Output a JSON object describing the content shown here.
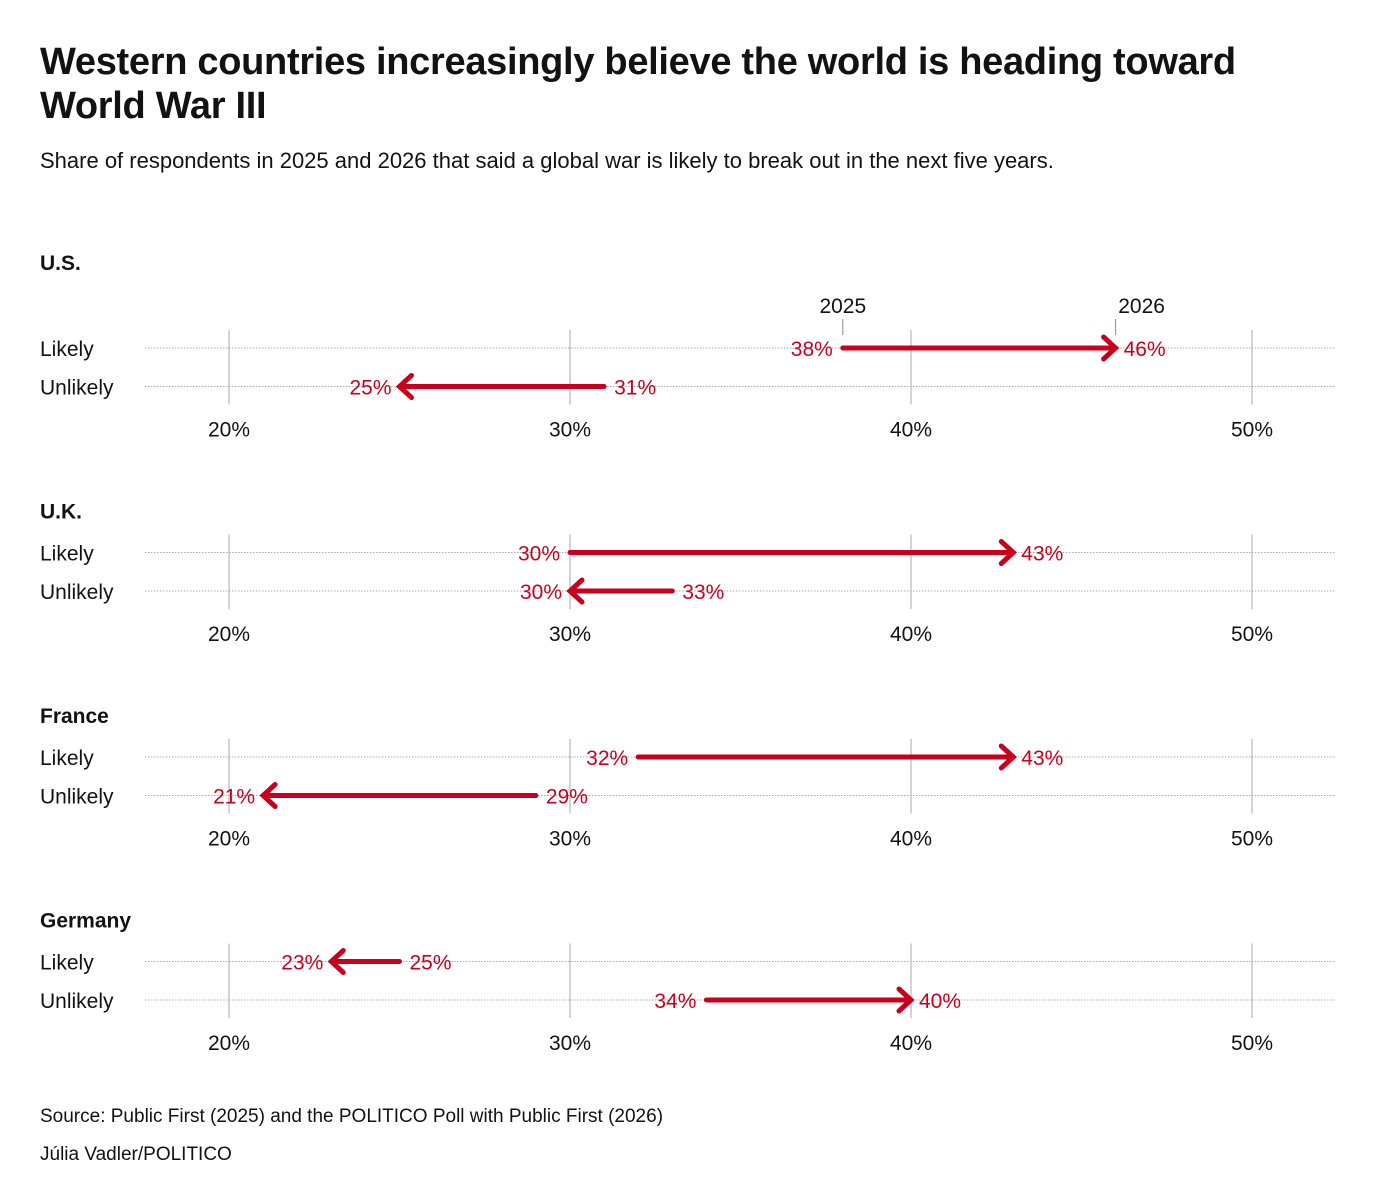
{
  "title": "Western countries increasingly believe the world is heading toward World War III",
  "subtitle": "Share of respondents in 2025 and 2026 that said a global war is likely to break out in the next five years.",
  "source": "Source: Public First (2025) and the POLITICO Poll with Public First (2026)",
  "credit": "Júlia Vadler/POLITICO",
  "colors": {
    "arrow": "#c8001e",
    "text": "#121212",
    "grid": "#999999"
  },
  "chart_data": {
    "type": "arrow-dot",
    "legend": {
      "start": "2025",
      "end": "2026"
    },
    "x_ticks": [
      20,
      30,
      40,
      50
    ],
    "x_tick_labels": [
      "20%",
      "30%",
      "40%",
      "50%"
    ],
    "xlim": [
      17.5,
      52.5
    ],
    "rows": [
      "Likely",
      "Unlikely"
    ],
    "panels": [
      {
        "name": "U.S.",
        "series": [
          {
            "name": "Likely",
            "start": 38,
            "end": 46,
            "start_label": "38%",
            "end_label": "46%"
          },
          {
            "name": "Unlikely",
            "start": 31,
            "end": 25,
            "start_label": "31%",
            "end_label": "25%"
          }
        ]
      },
      {
        "name": "U.K.",
        "series": [
          {
            "name": "Likely",
            "start": 30,
            "end": 43,
            "start_label": "30%",
            "end_label": "43%"
          },
          {
            "name": "Unlikely",
            "start": 33,
            "end": 30,
            "start_label": "33%",
            "end_label": "30%"
          }
        ]
      },
      {
        "name": "France",
        "series": [
          {
            "name": "Likely",
            "start": 32,
            "end": 43,
            "start_label": "32%",
            "end_label": "43%"
          },
          {
            "name": "Unlikely",
            "start": 29,
            "end": 21,
            "start_label": "29%",
            "end_label": "21%"
          }
        ]
      },
      {
        "name": "Germany",
        "series": [
          {
            "name": "Likely",
            "start": 25,
            "end": 23,
            "start_label": "25%",
            "end_label": "23%"
          },
          {
            "name": "Unlikely",
            "start": 34,
            "end": 40,
            "start_label": "34%",
            "end_label": "40%"
          }
        ]
      }
    ]
  }
}
